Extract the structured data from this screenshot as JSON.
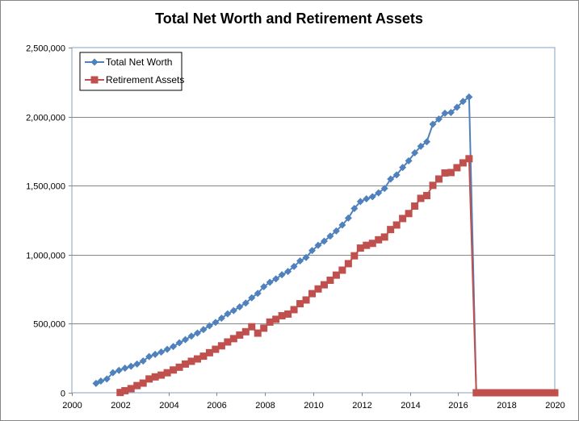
{
  "chart_data": {
    "type": "line",
    "title": "Total Net Worth and Retirement Assets",
    "xlabel": "",
    "ylabel": "",
    "xlim": [
      2000,
      2020
    ],
    "ylim": [
      0,
      2500000
    ],
    "x_ticks": [
      2000,
      2002,
      2004,
      2006,
      2008,
      2010,
      2012,
      2014,
      2016,
      2018,
      2020
    ],
    "x_tick_labels": [
      "2000",
      "2002",
      "2004",
      "2006",
      "2008",
      "2010",
      "2012",
      "2014",
      "2016",
      "2018",
      "2020"
    ],
    "y_ticks": [
      0,
      500000,
      1000000,
      1500000,
      2000000,
      2500000
    ],
    "y_tick_labels": [
      "0",
      "500,000",
      "1,000,000",
      "1,500,000",
      "2,000,000",
      "2,500,000"
    ],
    "grid": "horizontal",
    "legend_position": "top-left",
    "series": [
      {
        "name": "Total Net Worth",
        "color": "#4F81BD",
        "marker": "diamond",
        "points": [
          [
            2001.0,
            68000
          ],
          [
            2001.2,
            85000
          ],
          [
            2001.45,
            100000
          ],
          [
            2001.7,
            145000
          ],
          [
            2001.95,
            162000
          ],
          [
            2002.2,
            178000
          ],
          [
            2002.45,
            192000
          ],
          [
            2002.7,
            208000
          ],
          [
            2002.95,
            230000
          ],
          [
            2003.2,
            262000
          ],
          [
            2003.45,
            278000
          ],
          [
            2003.7,
            295000
          ],
          [
            2003.95,
            315000
          ],
          [
            2004.2,
            335000
          ],
          [
            2004.45,
            362000
          ],
          [
            2004.7,
            385000
          ],
          [
            2004.95,
            410000
          ],
          [
            2005.2,
            432000
          ],
          [
            2005.45,
            458000
          ],
          [
            2005.7,
            485000
          ],
          [
            2005.95,
            510000
          ],
          [
            2006.2,
            540000
          ],
          [
            2006.45,
            572000
          ],
          [
            2006.7,
            595000
          ],
          [
            2006.95,
            622000
          ],
          [
            2007.2,
            650000
          ],
          [
            2007.45,
            688000
          ],
          [
            2007.7,
            720000
          ],
          [
            2007.95,
            768000
          ],
          [
            2008.2,
            800000
          ],
          [
            2008.45,
            825000
          ],
          [
            2008.7,
            855000
          ],
          [
            2008.95,
            878000
          ],
          [
            2009.2,
            915000
          ],
          [
            2009.45,
            955000
          ],
          [
            2009.7,
            980000
          ],
          [
            2009.95,
            1030000
          ],
          [
            2010.2,
            1068000
          ],
          [
            2010.45,
            1098000
          ],
          [
            2010.7,
            1135000
          ],
          [
            2010.95,
            1172000
          ],
          [
            2011.2,
            1215000
          ],
          [
            2011.45,
            1265000
          ],
          [
            2011.7,
            1335000
          ],
          [
            2011.95,
            1385000
          ],
          [
            2012.2,
            1405000
          ],
          [
            2012.45,
            1420000
          ],
          [
            2012.7,
            1448000
          ],
          [
            2012.95,
            1480000
          ],
          [
            2013.2,
            1548000
          ],
          [
            2013.45,
            1578000
          ],
          [
            2013.7,
            1632000
          ],
          [
            2013.95,
            1680000
          ],
          [
            2014.2,
            1738000
          ],
          [
            2014.45,
            1785000
          ],
          [
            2014.7,
            1818000
          ],
          [
            2014.95,
            1945000
          ],
          [
            2015.2,
            1982000
          ],
          [
            2015.45,
            2025000
          ],
          [
            2015.7,
            2030000
          ],
          [
            2015.95,
            2068000
          ],
          [
            2016.2,
            2110000
          ],
          [
            2016.45,
            2142000
          ],
          [
            2016.75,
            0
          ]
        ]
      },
      {
        "name": "Retirement Assets",
        "color": "#C0504D",
        "marker": "square",
        "points": [
          [
            2002.0,
            2000
          ],
          [
            2002.2,
            15000
          ],
          [
            2002.45,
            30000
          ],
          [
            2002.7,
            52000
          ],
          [
            2002.95,
            70000
          ],
          [
            2003.2,
            100000
          ],
          [
            2003.45,
            115000
          ],
          [
            2003.7,
            128000
          ],
          [
            2003.95,
            145000
          ],
          [
            2004.2,
            165000
          ],
          [
            2004.45,
            185000
          ],
          [
            2004.7,
            208000
          ],
          [
            2004.95,
            228000
          ],
          [
            2005.2,
            245000
          ],
          [
            2005.45,
            265000
          ],
          [
            2005.7,
            290000
          ],
          [
            2005.95,
            315000
          ],
          [
            2006.2,
            340000
          ],
          [
            2006.45,
            368000
          ],
          [
            2006.7,
            392000
          ],
          [
            2006.95,
            418000
          ],
          [
            2007.2,
            442000
          ],
          [
            2007.45,
            478000
          ],
          [
            2007.7,
            432000
          ],
          [
            2007.95,
            468000
          ],
          [
            2008.2,
            512000
          ],
          [
            2008.45,
            532000
          ],
          [
            2008.7,
            558000
          ],
          [
            2008.95,
            570000
          ],
          [
            2009.2,
            602000
          ],
          [
            2009.45,
            645000
          ],
          [
            2009.7,
            672000
          ],
          [
            2009.95,
            718000
          ],
          [
            2010.2,
            752000
          ],
          [
            2010.45,
            782000
          ],
          [
            2010.7,
            815000
          ],
          [
            2010.95,
            852000
          ],
          [
            2011.2,
            888000
          ],
          [
            2011.45,
            935000
          ],
          [
            2011.7,
            992000
          ],
          [
            2011.95,
            1048000
          ],
          [
            2012.2,
            1068000
          ],
          [
            2012.45,
            1082000
          ],
          [
            2012.7,
            1108000
          ],
          [
            2012.95,
            1128000
          ],
          [
            2013.2,
            1182000
          ],
          [
            2013.45,
            1215000
          ],
          [
            2013.7,
            1262000
          ],
          [
            2013.95,
            1298000
          ],
          [
            2014.2,
            1352000
          ],
          [
            2014.45,
            1408000
          ],
          [
            2014.7,
            1428000
          ],
          [
            2014.95,
            1502000
          ],
          [
            2015.2,
            1548000
          ],
          [
            2015.45,
            1592000
          ],
          [
            2015.7,
            1595000
          ],
          [
            2015.95,
            1630000
          ],
          [
            2016.2,
            1665000
          ],
          [
            2016.45,
            1695000
          ],
          [
            2016.75,
            0
          ],
          [
            2017.0,
            0
          ],
          [
            2017.2,
            0
          ],
          [
            2017.4,
            0
          ],
          [
            2017.6,
            0
          ],
          [
            2017.8,
            0
          ],
          [
            2018.0,
            0
          ],
          [
            2018.2,
            0
          ],
          [
            2018.4,
            0
          ],
          [
            2018.6,
            0
          ],
          [
            2018.8,
            0
          ],
          [
            2019.0,
            0
          ],
          [
            2019.2,
            0
          ],
          [
            2019.4,
            0
          ],
          [
            2019.6,
            0
          ],
          [
            2019.8,
            0
          ],
          [
            2020.0,
            0
          ]
        ]
      }
    ]
  }
}
